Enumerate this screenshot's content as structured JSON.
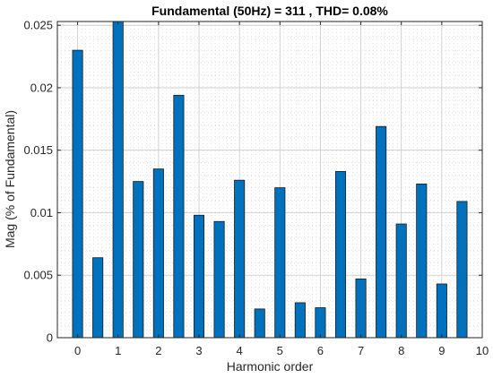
{
  "chart_data": {
    "type": "bar",
    "title": "Fundamental (50Hz) = 311 , THD= 0.08%",
    "xlabel": "Harmonic order",
    "ylabel": "Mag (% of Fundamental)",
    "xlim": [
      -0.5,
      10
    ],
    "ylim": [
      0,
      0.0253
    ],
    "xticks": [
      0,
      1,
      2,
      3,
      4,
      5,
      6,
      7,
      8,
      9,
      10
    ],
    "yticks": [
      0,
      0.005,
      0.01,
      0.015,
      0.02,
      0.025
    ],
    "ytick_labels": [
      "0",
      "0.005",
      "0.01",
      "0.015",
      "0.02",
      "0.025"
    ],
    "grid": true,
    "bar_color": "#0072BD",
    "x": [
      0,
      0.5,
      1,
      1.5,
      2,
      2.5,
      3,
      3.5,
      4,
      4.5,
      5,
      5.5,
      6,
      6.5,
      7,
      7.5,
      8,
      8.5,
      9,
      9.5
    ],
    "values": [
      0.023,
      0.0064,
      0.0253,
      0.0125,
      0.0135,
      0.0194,
      0.0098,
      0.0093,
      0.0126,
      0.0023,
      0.012,
      0.0028,
      0.0024,
      0.0133,
      0.0047,
      0.0169,
      0.0091,
      0.0123,
      0.0043,
      0.0109
    ]
  }
}
